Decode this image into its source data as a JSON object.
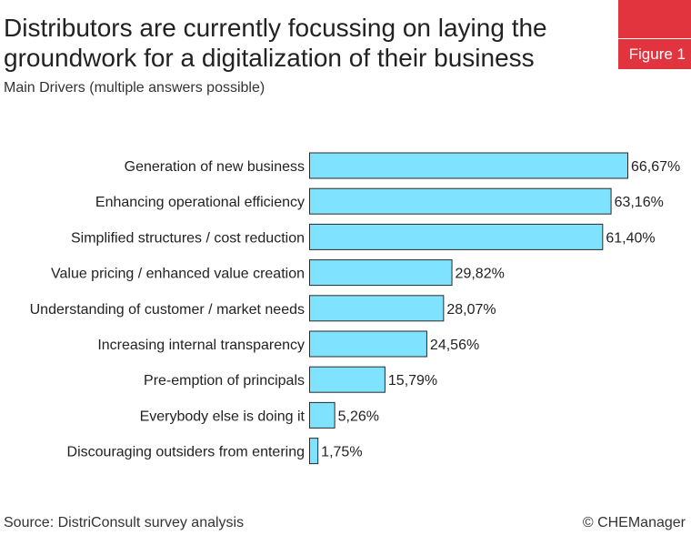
{
  "header": {
    "title": "Distributors are currently focussing on laying the groundwork for a digitalization of their business",
    "subtitle": "Main Drivers (multiple answers possible)",
    "figure_label": "Figure 1"
  },
  "footer": {
    "source": "Source: DistriConsult survey analysis",
    "copyright": "© CHEManager"
  },
  "colors": {
    "bar_fill": "#7fe3ff",
    "bar_stroke": "#2a2a2a",
    "badge": "#e2343f"
  },
  "chart_data": {
    "type": "bar",
    "orientation": "horizontal",
    "categories": [
      "Generation of new business",
      "Enhancing operational efficiency",
      "Simplified structures / cost reduction",
      "Value pricing / enhanced value creation",
      "Understanding of customer / market needs",
      "Increasing internal transparency",
      "Pre-emption of principals",
      "Everybody else is doing it",
      "Discouraging outsiders from entering"
    ],
    "values": [
      66.67,
      63.16,
      61.4,
      29.82,
      28.07,
      24.56,
      15.79,
      5.26,
      1.75
    ],
    "value_labels": [
      "66,67%",
      "63,16%",
      "61,40%",
      "29,82%",
      "28,07%",
      "24,56%",
      "15,79%",
      "5,26%",
      "1,75%"
    ],
    "xlim": [
      0,
      100
    ],
    "grid": false,
    "legend": false
  }
}
